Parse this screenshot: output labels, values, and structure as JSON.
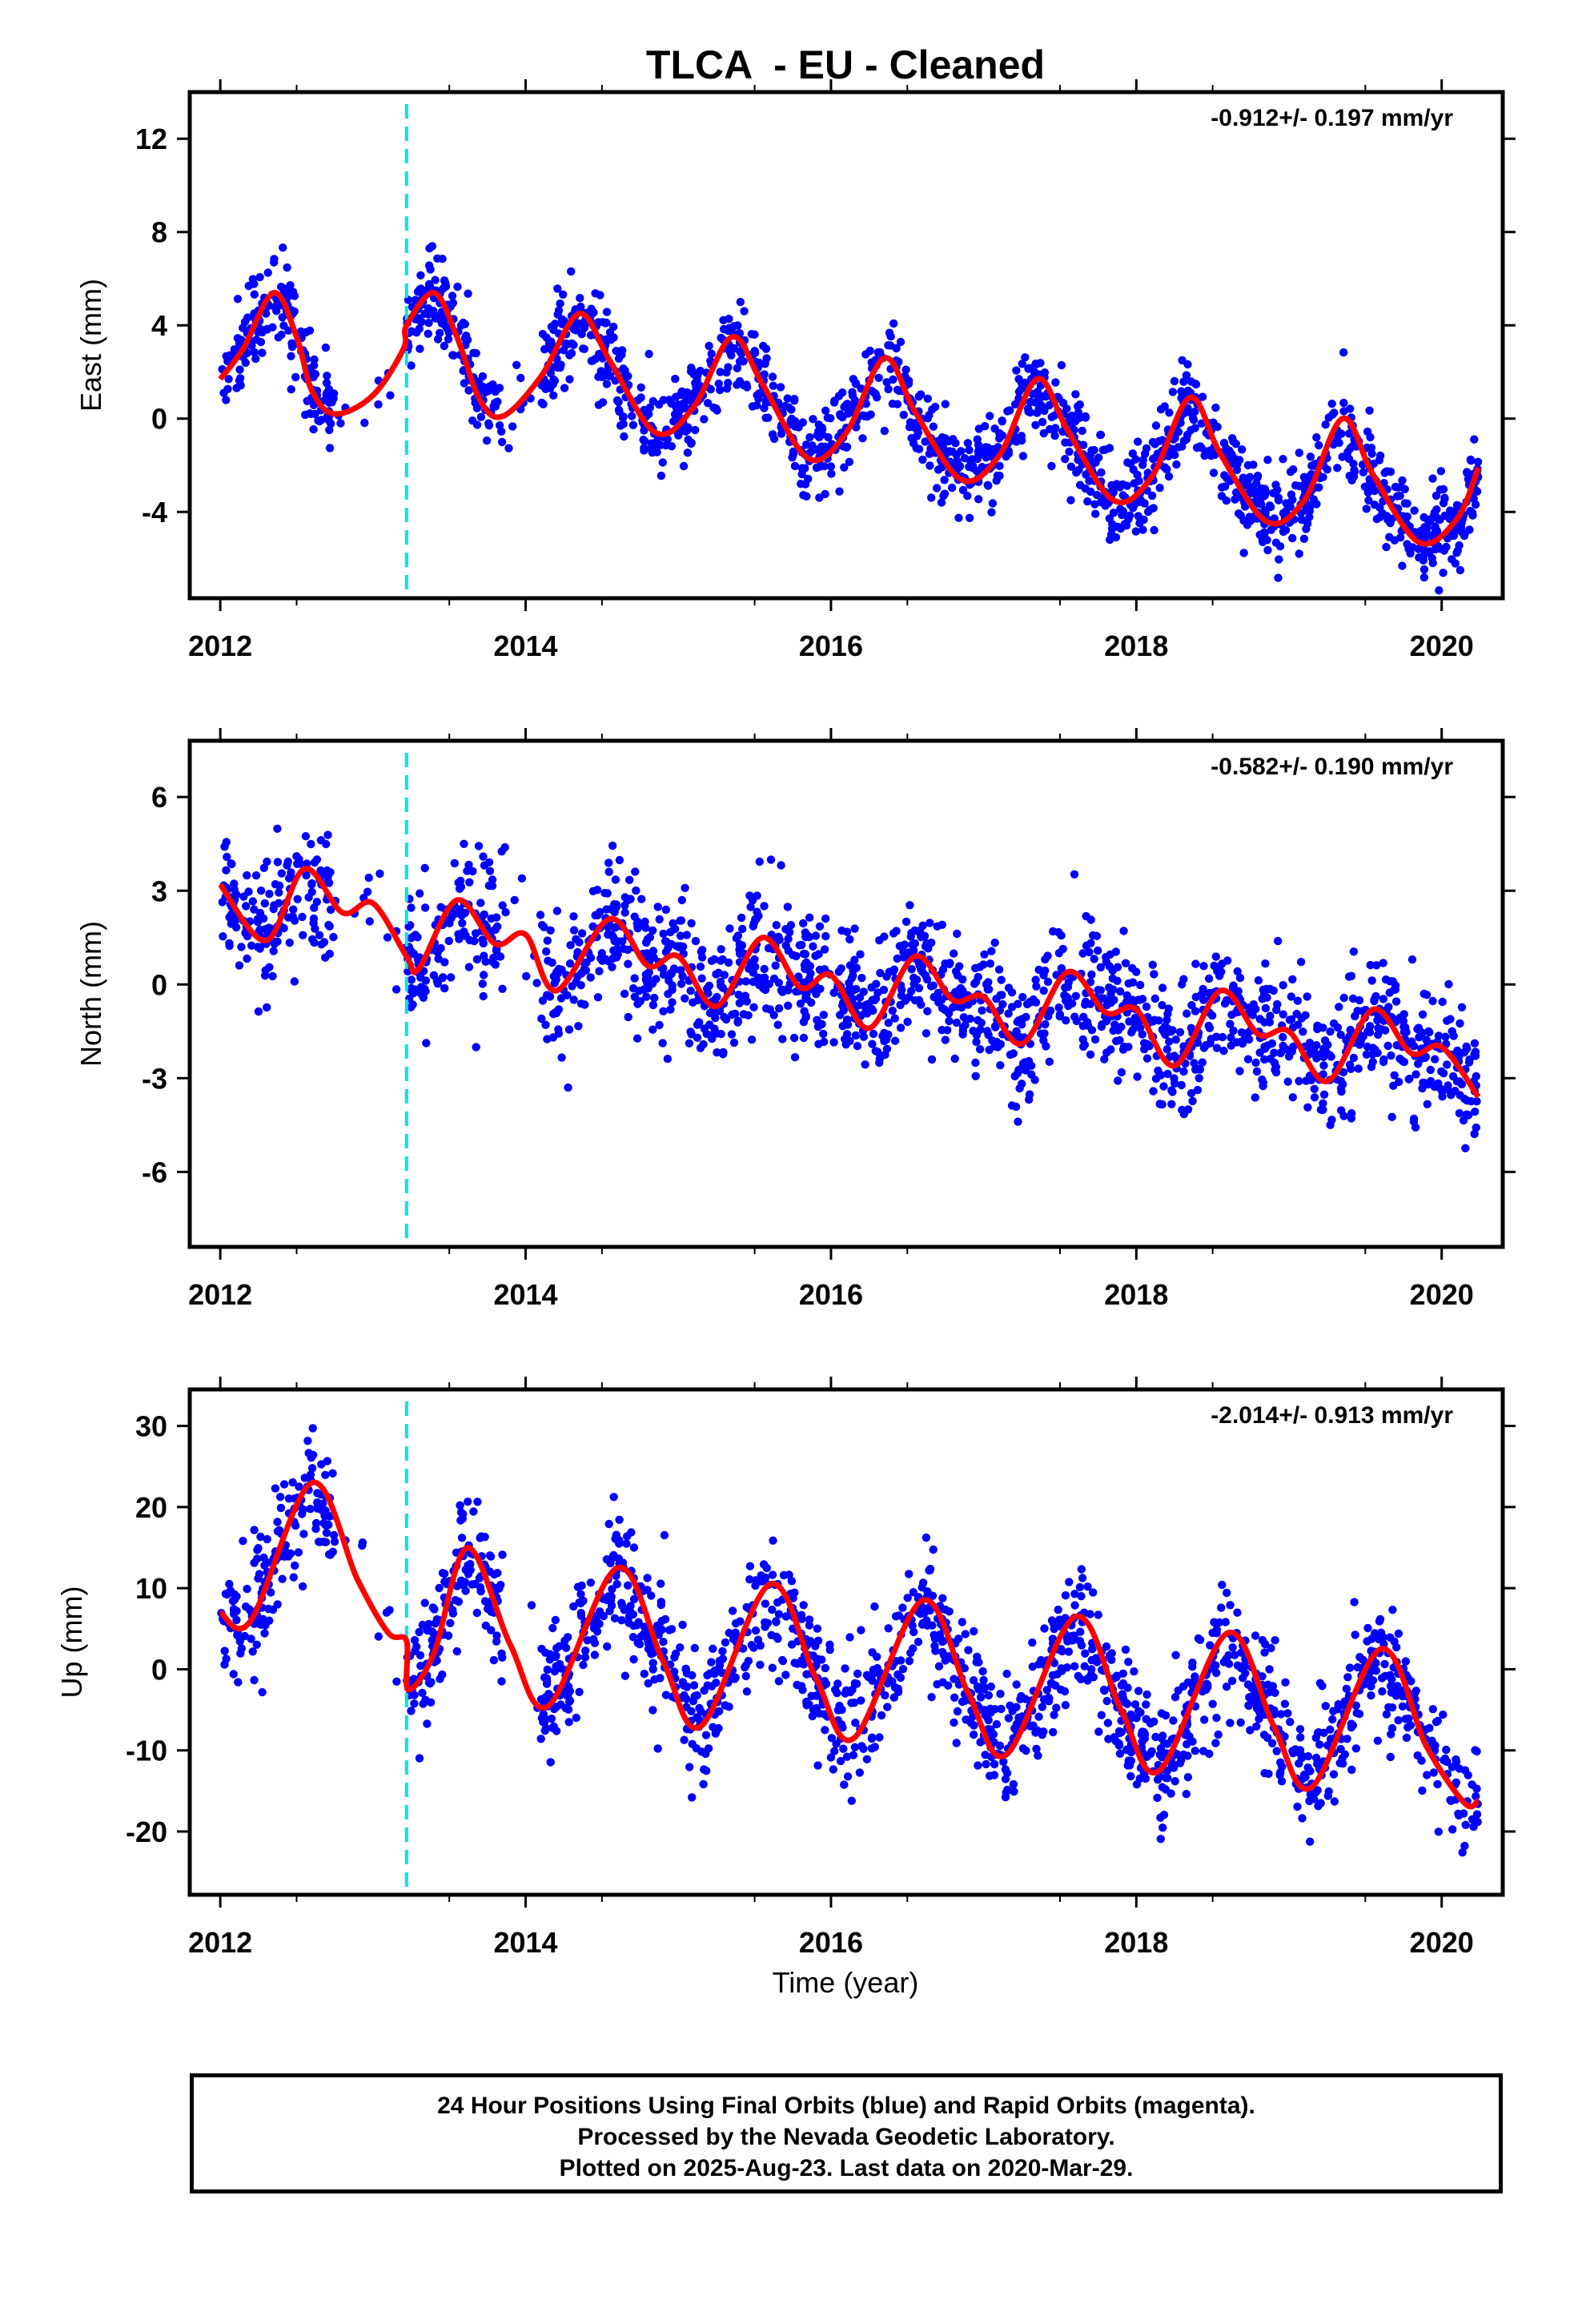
{
  "title": "TLCA  - EU - Cleaned",
  "xlabel": "Time (year)",
  "footer": {
    "line1": "24 Hour Positions Using Final Orbits (blue) and Rapid Orbits (magenta).",
    "line2": "Processed by the Nevada Geodetic Laboratory.",
    "line3": "Plotted on 2025-Aug-23. Last data on 2020-Mar-29."
  },
  "colors": {
    "points": "#0000ff",
    "fit": "#ff0000",
    "break": "#00e5e5"
  },
  "chart_data": [
    {
      "type": "scatter",
      "ylabel": "East (mm)",
      "rate": "-0.912+/- 0.197 mm/yr",
      "xlim": [
        2011.8,
        2020.4
      ],
      "ylim": [
        -7.7,
        14.0
      ],
      "xticks": [
        "2012",
        "2014",
        "2016",
        "2018",
        "2020"
      ],
      "yticks": [
        12,
        8,
        4,
        0,
        -4
      ],
      "ytick_labels": [
        "12",
        "8",
        "4",
        "0",
        "-4"
      ],
      "break_year": 2013.22,
      "series": [
        {
          "kind": "fit",
          "x": [
            2012.0,
            2012.15,
            2012.35,
            2012.5,
            2012.6,
            2012.75,
            2013.0,
            2013.2,
            2013.22,
            2013.4,
            2013.55,
            2013.7,
            2013.85,
            2014.1,
            2014.35,
            2014.55,
            2014.85,
            2015.1,
            2015.35,
            2015.55,
            2015.85,
            2016.1,
            2016.35,
            2016.55,
            2016.85,
            2017.1,
            2017.35,
            2017.55,
            2017.85,
            2018.1,
            2018.35,
            2018.55,
            2018.85,
            2019.1,
            2019.35,
            2019.55,
            2019.85,
            2020.1,
            2020.24
          ],
          "y": [
            1.7,
            3.0,
            5.4,
            3.5,
            1.2,
            0.2,
            1.0,
            3.0,
            4.0,
            5.4,
            3.5,
            0.8,
            0.1,
            1.8,
            4.5,
            2.5,
            -0.6,
            0.5,
            3.5,
            1.5,
            -1.7,
            -0.6,
            2.6,
            0.3,
            -2.6,
            -1.6,
            1.7,
            -0.5,
            -3.5,
            -2.5,
            0.9,
            -1.5,
            -4.4,
            -3.5,
            0.0,
            -2.4,
            -5.3,
            -4.3,
            -2.1
          ]
        }
      ]
    },
    {
      "type": "scatter",
      "ylabel": "North (mm)",
      "rate": "-0.582+/- 0.190 mm/yr",
      "xlim": [
        2011.8,
        2020.4
      ],
      "ylim": [
        -8.4,
        7.8
      ],
      "xticks": [
        "2012",
        "2014",
        "2016",
        "2018",
        "2020"
      ],
      "yticks": [
        6,
        3,
        0,
        -3,
        -6
      ],
      "ytick_labels": [
        "6",
        "3",
        "0",
        "-3",
        "-6"
      ],
      "break_year": 2013.22,
      "series": [
        {
          "kind": "fit",
          "x": [
            2012.0,
            2012.3,
            2012.55,
            2012.8,
            2013.0,
            2013.22,
            2013.3,
            2013.55,
            2013.8,
            2014.0,
            2014.2,
            2014.55,
            2014.8,
            2015.0,
            2015.25,
            2015.55,
            2015.8,
            2016.0,
            2016.25,
            2016.55,
            2016.8,
            2017.0,
            2017.25,
            2017.55,
            2017.8,
            2018.0,
            2018.25,
            2018.55,
            2018.8,
            2019.0,
            2019.25,
            2019.55,
            2019.8,
            2020.0,
            2020.24
          ],
          "y": [
            3.2,
            1.4,
            3.7,
            2.3,
            2.6,
            0.9,
            0.5,
            2.7,
            1.3,
            1.6,
            -0.2,
            2.1,
            0.6,
            0.9,
            -0.7,
            1.5,
            -0.1,
            0.3,
            -1.4,
            0.9,
            -0.5,
            -0.4,
            -1.9,
            0.4,
            -0.9,
            -0.8,
            -2.6,
            -0.2,
            -1.6,
            -1.5,
            -3.1,
            -0.8,
            -2.2,
            -2.0,
            -3.6
          ]
        }
      ]
    },
    {
      "type": "scatter",
      "ylabel": "Up (mm)",
      "rate": "-2.014+/- 0.913 mm/yr",
      "xlim": [
        2011.8,
        2020.4
      ],
      "ylim": [
        -27.8,
        34.5
      ],
      "xticks": [
        "2012",
        "2014",
        "2016",
        "2018",
        "2020"
      ],
      "yticks": [
        30,
        20,
        10,
        0,
        -10,
        -20
      ],
      "ytick_labels": [
        "30",
        "20",
        "10",
        "0",
        "-10",
        "-20"
      ],
      "break_year": 2013.22,
      "series": [
        {
          "kind": "fit",
          "x": [
            2012.0,
            2012.2,
            2012.6,
            2012.9,
            2013.1,
            2013.22,
            2013.23,
            2013.4,
            2013.62,
            2013.9,
            2014.15,
            2014.6,
            2014.9,
            2015.15,
            2015.6,
            2015.9,
            2016.15,
            2016.6,
            2016.9,
            2017.15,
            2017.6,
            2017.9,
            2018.15,
            2018.6,
            2018.9,
            2019.15,
            2019.6,
            2019.9,
            2020.15,
            2020.24
          ],
          "y": [
            7.0,
            6.0,
            23.0,
            11.0,
            4.5,
            3.5,
            -2.5,
            2.0,
            15.0,
            3.0,
            -4.5,
            12.5,
            1.0,
            -7.0,
            10.5,
            -1.0,
            -8.5,
            8.5,
            -3.0,
            -10.5,
            6.5,
            -5.0,
            -12.5,
            4.5,
            -7.0,
            -14.5,
            2.5,
            -9.5,
            -16.5,
            -16.2
          ]
        }
      ]
    }
  ]
}
